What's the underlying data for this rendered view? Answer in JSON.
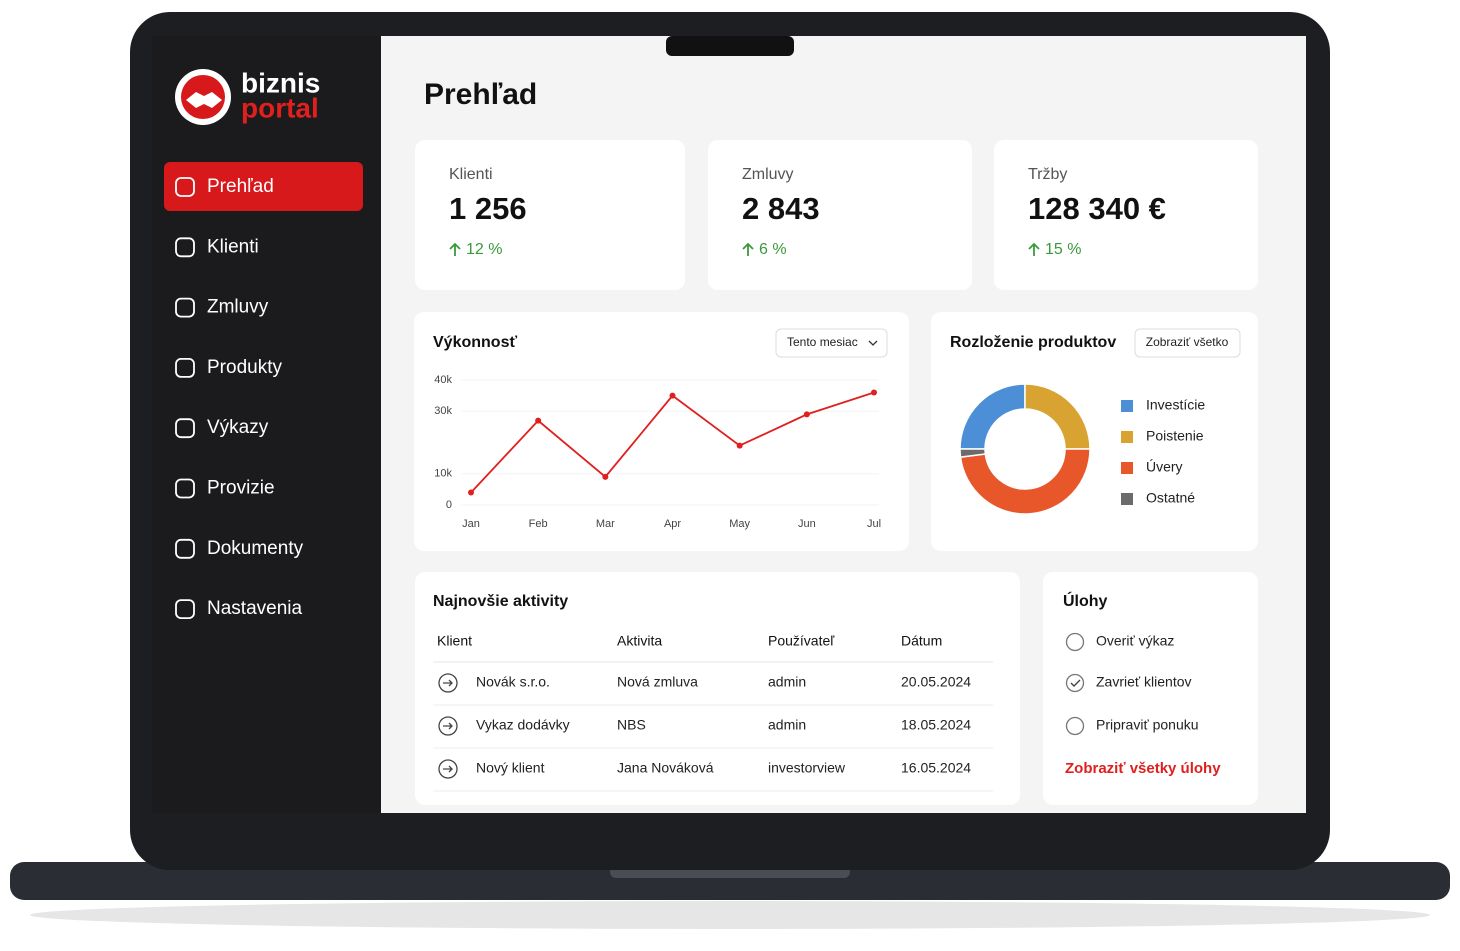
{
  "brand": {
    "line1": "biznis",
    "line2": "portal"
  },
  "nav": [
    "Prehľad",
    "Klienti",
    "Zmluvy",
    "Produkty",
    "Výkazy",
    "Provizie",
    "Dokumenty",
    "Nastavenia"
  ],
  "active_nav": 0,
  "page_title": "Prehľad",
  "kpis": [
    {
      "label": "Klienti",
      "value": "1 256",
      "change": "12 %"
    },
    {
      "label": "Zmluvy",
      "value": "2 843",
      "change": "6 %"
    },
    {
      "label": "Tržby",
      "value": "128 340 €",
      "change": "15 %"
    }
  ],
  "chart_data": [
    {
      "type": "line",
      "title": "Výkonnosť",
      "filter": "Tento mesiac",
      "categories": [
        "Jan",
        "Feb",
        "Mar",
        "Apr",
        "May",
        "Jun",
        "Jul"
      ],
      "series": [
        {
          "color": "#e0201f",
          "values": [
            4000,
            27000,
            9000,
            35000,
            19000,
            29000,
            36000
          ]
        }
      ],
      "ylim": [
        0,
        40000
      ],
      "yticks": [
        0,
        {
          "value": 10000,
          "label": "10k"
        },
        {
          "value": 30000,
          "label": "30k"
        },
        {
          "value": 40000,
          "label": "40k"
        }
      ]
    },
    {
      "type": "donut",
      "title": "Rozloženie produktov",
      "button": "Zobraziť všetko",
      "categories": [
        "Investície",
        "Poistenie",
        "Úvery",
        "Ostatné"
      ],
      "values": [
        25,
        25,
        48,
        2
      ],
      "colors": [
        "#4d8fd6",
        "#d9a332",
        "#e8572a",
        "#6b6b6b"
      ]
    }
  ],
  "activities": {
    "title": "Najnovšie aktivity",
    "columns": [
      "Klient",
      "Aktivita",
      "Používateľ",
      "Dátum"
    ],
    "rows": [
      [
        "Novák s.r.o.",
        "Nová zmluva",
        "admin",
        "20.05.2024"
      ],
      [
        "Vykaz dodávky",
        "NBS",
        "admin",
        "18.05.2024"
      ],
      [
        "Nový klient",
        "Jana Nováková",
        "investorview",
        "16.05.2024"
      ]
    ]
  },
  "tasks": {
    "title": "Úlohy",
    "items": [
      {
        "label": "Overiť výkaz",
        "done": false
      },
      {
        "label": "Zavrieť klientov",
        "done": true
      },
      {
        "label": "Pripraviť ponuku",
        "done": false
      }
    ],
    "link": "Zobraziť všetky úlohy"
  }
}
